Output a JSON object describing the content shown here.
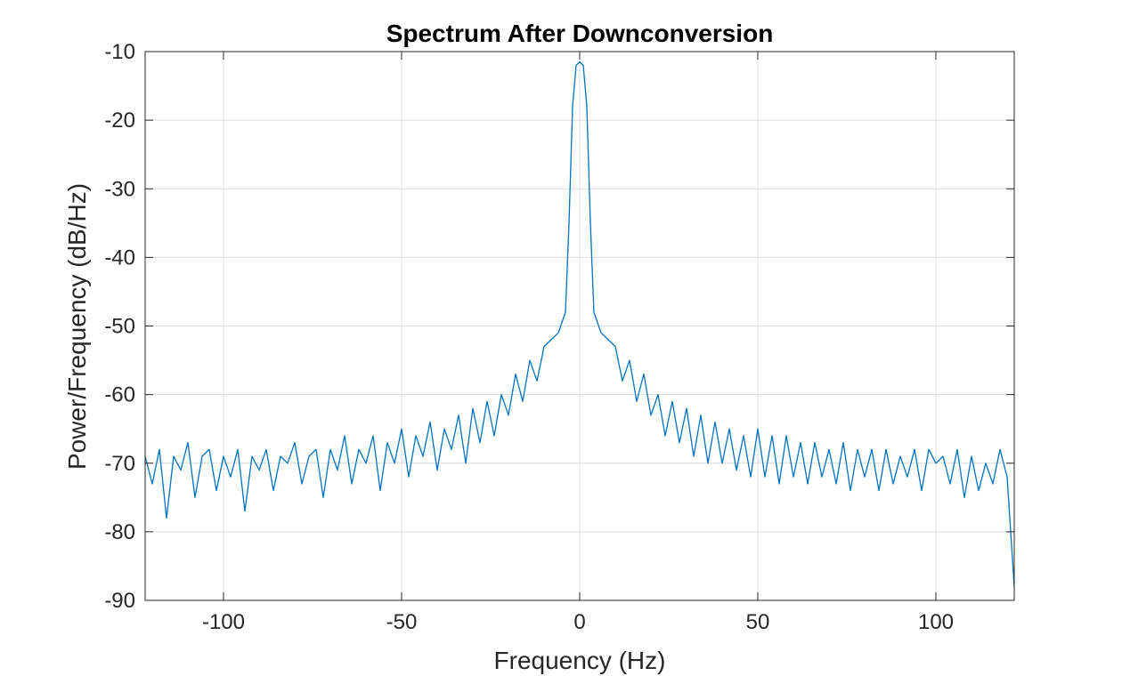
{
  "chart_data": {
    "type": "line",
    "title": "Spectrum After Downconversion",
    "xlabel": "Frequency (Hz)",
    "ylabel": "Power/Frequency (dB/Hz)",
    "xlim": [
      -122,
      122
    ],
    "ylim": [
      -90,
      -10
    ],
    "xticks": [
      -100,
      -50,
      0,
      50,
      100
    ],
    "xtick_labels": [
      "-100",
      "-50",
      "0",
      "50",
      "100"
    ],
    "yticks": [
      -10,
      -20,
      -30,
      -40,
      -50,
      -60,
      -70,
      -80,
      -90
    ],
    "ytick_labels": [
      "-10",
      "-20",
      "-30",
      "-40",
      "-50",
      "-60",
      "-70",
      "-80",
      "-90"
    ],
    "grid": true,
    "series": [
      {
        "color": "#0072BD",
        "x": [
          -122,
          -120,
          -118,
          -116,
          -114,
          -112,
          -110,
          -108,
          -106,
          -104,
          -102,
          -100,
          -98,
          -96,
          -94,
          -92,
          -90,
          -88,
          -86,
          -84,
          -82,
          -80,
          -78,
          -76,
          -74,
          -72,
          -70,
          -68,
          -66,
          -64,
          -62,
          -60,
          -58,
          -56,
          -54,
          -52,
          -50,
          -48,
          -46,
          -44,
          -42,
          -40,
          -38,
          -36,
          -34,
          -32,
          -30,
          -28,
          -26,
          -24,
          -22,
          -20,
          -18,
          -16,
          -14,
          -12,
          -10,
          -8,
          -6,
          -4,
          -3,
          -2,
          -1,
          0,
          1,
          2,
          3,
          4,
          6,
          8,
          10,
          12,
          14,
          16,
          18,
          20,
          22,
          24,
          26,
          28,
          30,
          32,
          34,
          36,
          38,
          40,
          42,
          44,
          46,
          48,
          50,
          52,
          54,
          56,
          58,
          60,
          62,
          64,
          66,
          68,
          70,
          72,
          74,
          76,
          78,
          80,
          82,
          84,
          86,
          88,
          90,
          92,
          94,
          96,
          98,
          100,
          102,
          104,
          106,
          108,
          110,
          112,
          114,
          116,
          118,
          120,
          122
        ],
        "y": [
          -69,
          -73,
          -68,
          -78,
          -69,
          -71,
          -67,
          -75,
          -69,
          -68,
          -74,
          -69,
          -72,
          -68,
          -77,
          -69,
          -71,
          -68,
          -74,
          -69,
          -70,
          -67,
          -73,
          -69,
          -68,
          -75,
          -68,
          -71,
          -66,
          -73,
          -68,
          -70,
          -66,
          -74,
          -67,
          -70,
          -65,
          -72,
          -66,
          -69,
          -64,
          -71,
          -65,
          -68,
          -63,
          -70,
          -62,
          -67,
          -61,
          -66,
          -60,
          -63,
          -57,
          -61,
          -55,
          -58,
          -53,
          -52,
          -51,
          -48,
          -35,
          -18,
          -12,
          -11.5,
          -12,
          -18,
          -35,
          -48,
          -51,
          -52,
          -53,
          -58,
          -55,
          -61,
          -57,
          -63,
          -60,
          -66,
          -61,
          -67,
          -62,
          -69,
          -63,
          -70,
          -64,
          -70,
          -65,
          -71,
          -66,
          -72,
          -65,
          -72,
          -66,
          -73,
          -66,
          -72,
          -67,
          -73,
          -67,
          -72,
          -68,
          -73,
          -67,
          -74,
          -68,
          -72,
          -68,
          -74,
          -68,
          -73,
          -69,
          -72,
          -68,
          -74,
          -68,
          -70,
          -69,
          -73,
          -68,
          -75,
          -69,
          -74,
          -70,
          -73,
          -68,
          -72,
          -88
        ]
      }
    ]
  }
}
